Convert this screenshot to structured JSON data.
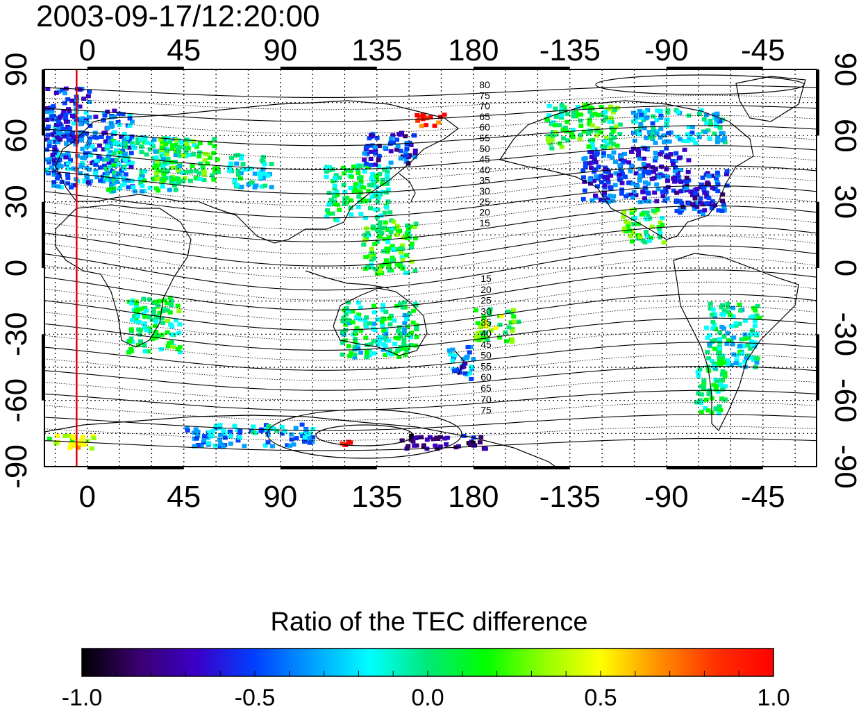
{
  "title": "2003-09-17/12:20:00",
  "map": {
    "x_tick_labels": [
      "0",
      "45",
      "90",
      "135",
      "180",
      "-135",
      "-90",
      "-45"
    ],
    "x_tick_longitudes": [
      0,
      45,
      90,
      135,
      180,
      225,
      270,
      315
    ],
    "y_tick_labels": [
      "90",
      "60",
      "30",
      "0",
      "-30",
      "-60",
      "-90"
    ],
    "y_tick_latitudes": [
      90,
      60,
      30,
      0,
      -30,
      -60,
      -90
    ],
    "lon_range": [
      -20,
      340
    ],
    "lat_range": [
      -90,
      90
    ],
    "red_line_longitude": -5,
    "red_line_color": "#e00000"
  },
  "contour_labels": {
    "north": [
      "80",
      "75",
      "70",
      "65",
      "60",
      "55",
      "50",
      "45",
      "40",
      "35",
      "30",
      "25",
      "20",
      "15"
    ],
    "south": [
      "15",
      "20",
      "25",
      "30",
      "35",
      "40",
      "45",
      "50",
      "55",
      "60",
      "65",
      "70",
      "75"
    ]
  },
  "colorbar": {
    "title": "Ratio of the TEC difference",
    "tick_labels": [
      "-1.0",
      "-0.5",
      "0.0",
      "0.5",
      "1.0"
    ],
    "min": -1.0,
    "max": 1.0,
    "stops": [
      "#000000",
      "#3a0070",
      "#3b00c8",
      "#0040ff",
      "#00a0ff",
      "#00ffff",
      "#00e878",
      "#00ff00",
      "#90ff00",
      "#ffff00",
      "#ff9000",
      "#ff3000",
      "#ff0000"
    ]
  },
  "data_regions": [
    {
      "lon": 0,
      "lat": 55,
      "w": 40,
      "h": 35,
      "value": -0.4
    },
    {
      "lon": 25,
      "lat": 48,
      "w": 35,
      "h": 25,
      "value": -0.1
    },
    {
      "lon": -10,
      "lat": 70,
      "w": 20,
      "h": 25,
      "value": -0.5
    },
    {
      "lon": 45,
      "lat": 50,
      "w": 30,
      "h": 20,
      "value": 0.1
    },
    {
      "lon": 75,
      "lat": 45,
      "w": 20,
      "h": 15,
      "value": -0.15
    },
    {
      "lon": 125,
      "lat": 35,
      "w": 30,
      "h": 25,
      "value": 0.0
    },
    {
      "lon": 140,
      "lat": 55,
      "w": 25,
      "h": 15,
      "value": -0.55
    },
    {
      "lon": 160,
      "lat": 68,
      "w": 15,
      "h": 6,
      "value": 0.95
    },
    {
      "lon": 140,
      "lat": 10,
      "w": 25,
      "h": 25,
      "value": 0.1
    },
    {
      "lon": 30,
      "lat": -25,
      "w": 25,
      "h": 25,
      "value": 0.05
    },
    {
      "lon": 135,
      "lat": -27,
      "w": 35,
      "h": 25,
      "value": -0.05
    },
    {
      "lon": 173,
      "lat": -42,
      "w": 12,
      "h": 15,
      "value": -0.4
    },
    {
      "lon": 190,
      "lat": -25,
      "w": 20,
      "h": 15,
      "value": 0.2
    },
    {
      "lon": 255,
      "lat": 43,
      "w": 50,
      "h": 25,
      "value": -0.5
    },
    {
      "lon": 230,
      "lat": 65,
      "w": 35,
      "h": 20,
      "value": 0.1
    },
    {
      "lon": 275,
      "lat": 65,
      "w": 45,
      "h": 15,
      "value": -0.2
    },
    {
      "lon": 285,
      "lat": 35,
      "w": 25,
      "h": 20,
      "value": -0.55
    },
    {
      "lon": 258,
      "lat": 20,
      "w": 20,
      "h": 15,
      "value": 0.1
    },
    {
      "lon": 300,
      "lat": -30,
      "w": 25,
      "h": 30,
      "value": -0.1
    },
    {
      "lon": 290,
      "lat": -55,
      "w": 15,
      "h": 20,
      "value": 0.0
    },
    {
      "lon": 75,
      "lat": -75,
      "w": 60,
      "h": 10,
      "value": -0.3
    },
    {
      "lon": 165,
      "lat": -78,
      "w": 40,
      "h": 6,
      "value": -0.8
    },
    {
      "lon": 120,
      "lat": -78,
      "w": 10,
      "h": 3,
      "value": 1.0
    },
    {
      "lon": -10,
      "lat": -78,
      "w": 25,
      "h": 6,
      "value": 0.4
    }
  ]
}
